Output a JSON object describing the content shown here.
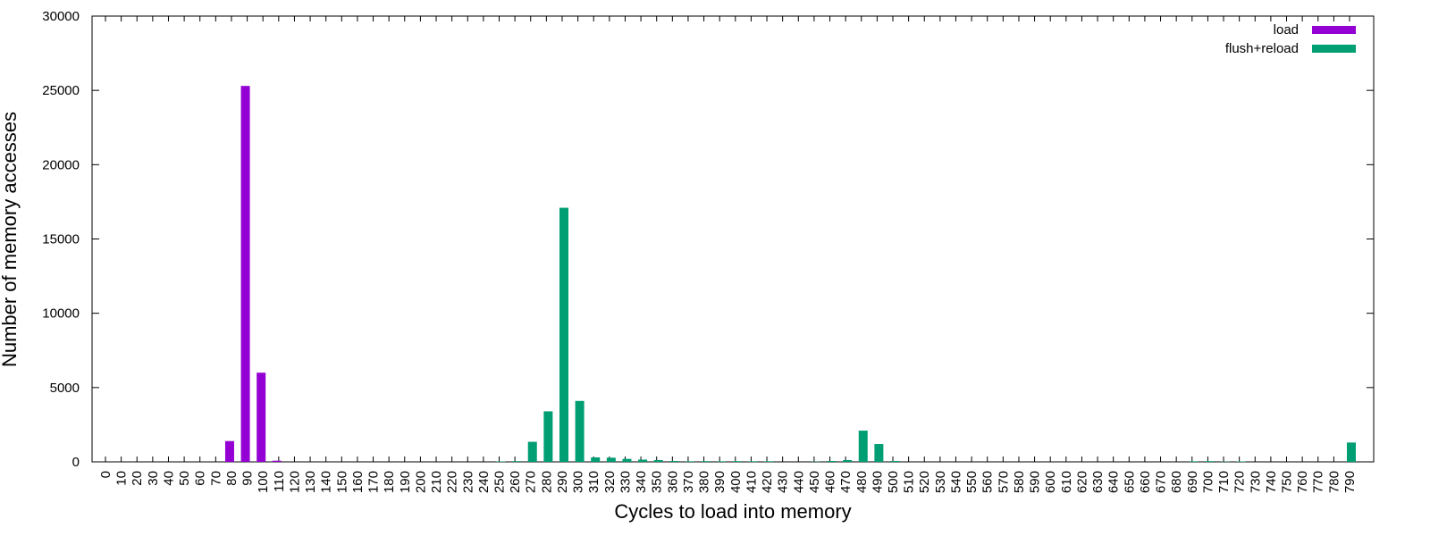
{
  "chart_data": {
    "type": "bar",
    "x_label": "Cycles to load into memory",
    "y_label": "Number of memory accesses",
    "categories": [
      0,
      10,
      20,
      30,
      40,
      50,
      60,
      70,
      80,
      90,
      100,
      110,
      120,
      130,
      140,
      150,
      160,
      170,
      180,
      190,
      200,
      210,
      220,
      230,
      240,
      250,
      260,
      270,
      280,
      290,
      300,
      310,
      320,
      330,
      340,
      350,
      360,
      370,
      380,
      390,
      400,
      410,
      420,
      430,
      440,
      450,
      460,
      470,
      480,
      490,
      500,
      510,
      520,
      530,
      540,
      550,
      560,
      570,
      580,
      590,
      600,
      610,
      620,
      630,
      640,
      650,
      660,
      670,
      680,
      690,
      700,
      710,
      720,
      730,
      740,
      750,
      760,
      770,
      780,
      790
    ],
    "series": [
      {
        "name": "load",
        "color": "#9400d3",
        "values": [
          0,
          0,
          0,
          0,
          0,
          0,
          0,
          0,
          1400,
          25300,
          6000,
          80,
          0,
          0,
          0,
          0,
          0,
          0,
          0,
          0,
          0,
          0,
          0,
          0,
          0,
          0,
          0,
          0,
          0,
          0,
          0,
          0,
          0,
          0,
          0,
          0,
          0,
          0,
          0,
          0,
          0,
          0,
          0,
          0,
          0,
          0,
          0,
          0,
          0,
          0,
          0,
          0,
          0,
          0,
          0,
          0,
          0,
          0,
          0,
          0,
          0,
          0,
          0,
          0,
          0,
          0,
          0,
          0,
          0,
          0,
          0,
          0,
          0,
          0,
          0,
          0,
          0,
          0,
          0,
          0
        ]
      },
      {
        "name": "flush+reload",
        "color": "#009e73",
        "values": [
          0,
          0,
          0,
          0,
          0,
          0,
          0,
          0,
          0,
          0,
          0,
          0,
          0,
          0,
          0,
          0,
          0,
          0,
          0,
          0,
          0,
          0,
          0,
          0,
          0,
          30,
          50,
          1350,
          3400,
          17100,
          4100,
          300,
          280,
          200,
          150,
          120,
          60,
          40,
          50,
          40,
          50,
          40,
          40,
          0,
          0,
          20,
          60,
          120,
          2100,
          1200,
          60,
          0,
          0,
          0,
          0,
          0,
          0,
          0,
          0,
          0,
          0,
          0,
          0,
          0,
          0,
          0,
          0,
          0,
          0,
          40,
          50,
          20,
          30,
          0,
          0,
          0,
          0,
          0,
          0,
          1300
        ]
      }
    ],
    "ylim": [
      0,
      30000
    ],
    "yticks": [
      0,
      5000,
      10000,
      15000,
      20000,
      25000,
      30000
    ],
    "grid": false,
    "legend": "top-right"
  }
}
